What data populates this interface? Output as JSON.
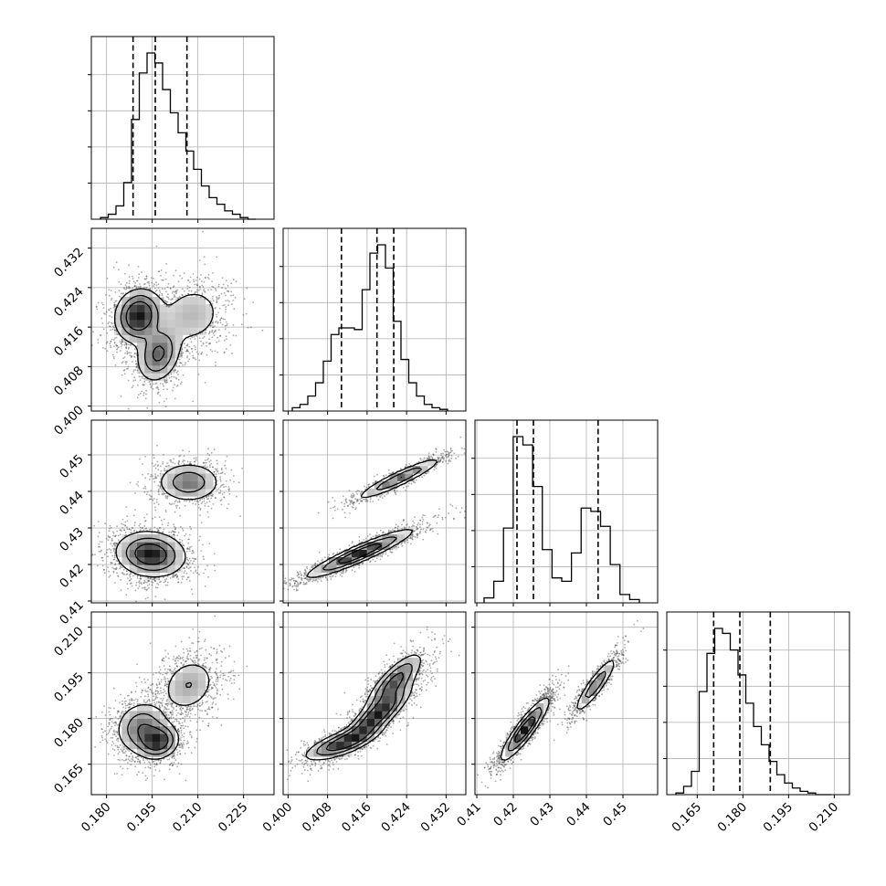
{
  "chart_data": {
    "type": "corner",
    "n_params": 4,
    "params": [
      {
        "range": [
          0.175,
          0.235
        ],
        "ticks": [
          0.18,
          0.195,
          0.21,
          0.225
        ],
        "tick_labels": [
          "0.180",
          "0.195",
          "0.210",
          "0.225"
        ],
        "hist_counts": [
          1,
          3,
          8,
          22,
          60,
          88,
          100,
          94,
          78,
          64,
          52,
          41,
          30,
          20,
          13,
          9,
          5,
          3,
          1,
          0
        ],
        "quantiles": [
          0.1887,
          0.196,
          0.2064
        ]
      },
      {
        "range": [
          0.399,
          0.436
        ],
        "ticks": [
          0.4,
          0.408,
          0.416,
          0.424,
          0.432
        ],
        "tick_labels": [
          "0.400",
          "0.408",
          "0.416",
          "0.424",
          "0.432"
        ],
        "hist_counts": [
          2,
          4,
          9,
          17,
          30,
          46,
          50,
          50,
          49,
          73,
          95,
          100,
          86,
          54,
          31,
          17,
          9,
          4,
          2,
          1
        ],
        "quantiles": [
          0.4108,
          0.418,
          0.4214
        ]
      },
      {
        "range": [
          0.4095,
          0.4595
        ],
        "ticks": [
          0.41,
          0.42,
          0.43,
          0.44,
          0.45
        ],
        "tick_labels": [
          "0.41",
          "0.42",
          "0.43",
          "0.44",
          "0.45"
        ],
        "hist_counts": [
          3,
          13,
          45,
          100,
          95,
          70,
          32,
          15,
          13,
          30,
          57,
          55,
          46,
          23,
          5,
          2
        ],
        "quantiles": [
          0.421,
          0.4255,
          0.4432
        ]
      },
      {
        "range": [
          0.155,
          0.215
        ],
        "ticks": [
          0.165,
          0.18,
          0.195,
          0.21
        ],
        "tick_labels": [
          "0.165",
          "0.180",
          "0.195",
          "0.210"
        ],
        "hist_counts": [
          1,
          5,
          14,
          62,
          85,
          100,
          97,
          87,
          72,
          55,
          41,
          30,
          20,
          12,
          7,
          4,
          2,
          1,
          0,
          0
        ],
        "quantiles": [
          0.1704,
          0.179,
          0.189
        ]
      }
    ],
    "pairs": [
      {
        "x": 0,
        "y": 1,
        "modes": [
          {
            "w": 0.45,
            "mx": 0.1905,
            "my": 0.4183,
            "sx": 0.004,
            "sy": 0.0028,
            "rho": 0.1
          },
          {
            "w": 0.3,
            "mx": 0.197,
            "my": 0.4105,
            "sx": 0.0038,
            "sy": 0.003,
            "rho": 0.2
          },
          {
            "w": 0.25,
            "mx": 0.208,
            "my": 0.4185,
            "sx": 0.006,
            "sy": 0.0035,
            "rho": 0.1
          }
        ],
        "contour_levels": [
          0.15,
          0.35,
          0.6
        ]
      },
      {
        "x": 0,
        "y": 2,
        "modes": [
          {
            "w": 0.68,
            "mx": 0.1945,
            "my": 0.4228,
            "sx": 0.0055,
            "sy": 0.003,
            "rho": -0.1
          },
          {
            "w": 0.32,
            "mx": 0.207,
            "my": 0.4425,
            "sx": 0.005,
            "sy": 0.0026,
            "rho": 0.0
          }
        ],
        "contour_levels": [
          0.12,
          0.35,
          0.65
        ]
      },
      {
        "x": 1,
        "y": 2,
        "modes": [
          {
            "w": 0.68,
            "mx": 0.4145,
            "my": 0.423,
            "sx": 0.0052,
            "sy": 0.0032,
            "rho": 0.93
          },
          {
            "w": 0.32,
            "mx": 0.4225,
            "my": 0.4435,
            "sx": 0.0042,
            "sy": 0.0028,
            "rho": 0.93
          }
        ],
        "contour_levels": [
          0.12,
          0.35,
          0.65
        ]
      },
      {
        "x": 0,
        "y": 3,
        "modes": [
          {
            "w": 0.4,
            "mx": 0.1915,
            "my": 0.177,
            "sx": 0.0045,
            "sy": 0.0045,
            "rho": 0.1
          },
          {
            "w": 0.3,
            "mx": 0.197,
            "my": 0.1725,
            "sx": 0.0035,
            "sy": 0.003,
            "rho": 0.1
          },
          {
            "w": 0.3,
            "mx": 0.207,
            "my": 0.191,
            "sx": 0.005,
            "sy": 0.005,
            "rho": 0.2
          }
        ],
        "contour_levels": [
          0.15,
          0.35,
          0.6
        ]
      },
      {
        "x": 1,
        "y": 3,
        "modes": [
          {
            "w": 0.3,
            "mx": 0.411,
            "my": 0.172,
            "sx": 0.004,
            "sy": 0.003,
            "rho": 0.75
          },
          {
            "w": 0.4,
            "mx": 0.418,
            "my": 0.181,
            "sx": 0.0035,
            "sy": 0.005,
            "rho": 0.85
          },
          {
            "w": 0.3,
            "mx": 0.4215,
            "my": 0.192,
            "sx": 0.003,
            "sy": 0.005,
            "rho": 0.8
          }
        ],
        "contour_levels": [
          0.15,
          0.35,
          0.6
        ]
      },
      {
        "x": 2,
        "y": 3,
        "modes": [
          {
            "w": 0.68,
            "mx": 0.4232,
            "my": 0.1765,
            "sx": 0.0032,
            "sy": 0.005,
            "rho": 0.9
          },
          {
            "w": 0.32,
            "mx": 0.4425,
            "my": 0.191,
            "sx": 0.0028,
            "sy": 0.0045,
            "rho": 0.9
          }
        ],
        "contour_levels": [
          0.12,
          0.35,
          0.65
        ]
      }
    ],
    "grid": true,
    "axis_labels": [],
    "title": ""
  }
}
